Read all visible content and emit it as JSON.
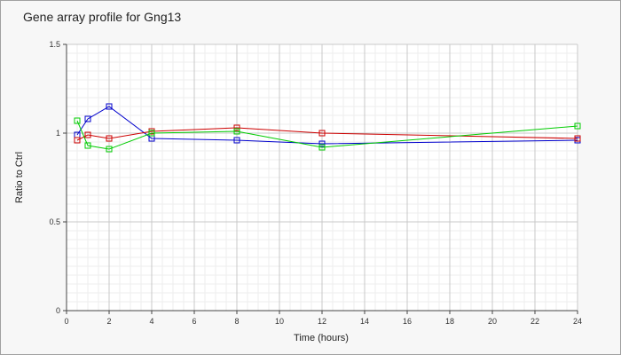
{
  "chart_data": {
    "type": "line",
    "title": "Gene array profile for Gng13",
    "xlabel": "Time (hours)",
    "ylabel": "Ratio to Ctrl",
    "xlim": [
      0,
      24
    ],
    "ylim": [
      0,
      1.5
    ],
    "x_ticks": [
      0,
      2,
      4,
      6,
      8,
      10,
      12,
      14,
      16,
      18,
      20,
      22,
      24
    ],
    "y_ticks": [
      0,
      0.5,
      1,
      1.5
    ],
    "x_tick_labels": [
      "0",
      "2",
      "4",
      "6",
      "8",
      "10",
      "12",
      "14",
      "16",
      "18",
      "20",
      "22",
      "24"
    ],
    "y_tick_labels": [
      "0",
      "0.5",
      "1",
      "1.5"
    ],
    "grid": true,
    "marker": "square",
    "series": [
      {
        "color": "#0000cc",
        "x": [
          0.5,
          1,
          2,
          4,
          8,
          12,
          24
        ],
        "y": [
          0.99,
          1.08,
          1.15,
          0.97,
          0.96,
          0.94,
          0.96
        ]
      },
      {
        "color": "#cc0000",
        "x": [
          0.5,
          1,
          2,
          4,
          8,
          12,
          24
        ],
        "y": [
          0.96,
          0.99,
          0.97,
          1.01,
          1.03,
          1.0,
          0.97
        ]
      },
      {
        "color": "#00cc00",
        "x": [
          0.5,
          1,
          2,
          4,
          8,
          12,
          24
        ],
        "y": [
          1.07,
          0.93,
          0.91,
          1.0,
          1.01,
          0.92,
          1.04
        ]
      }
    ]
  }
}
